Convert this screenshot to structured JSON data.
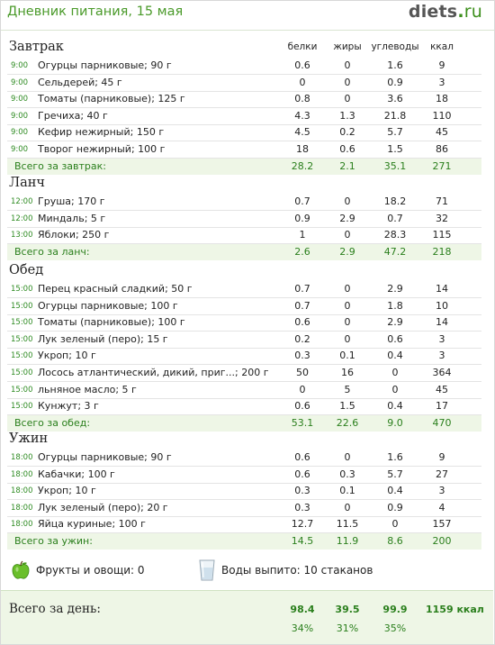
{
  "header": {
    "title": "Дневник питания, 15 мая",
    "logo_main": "diets",
    "logo_dot": ".",
    "logo_tld": "ru"
  },
  "columns": [
    "белки",
    "жиры",
    "углеводы",
    "ккал"
  ],
  "meals": [
    {
      "title": "Завтрак",
      "items": [
        {
          "time": "9:00",
          "name": "Огурцы парниковые; 90 г",
          "p": "0.6",
          "f": "0",
          "c": "1.6",
          "k": "9"
        },
        {
          "time": "9:00",
          "name": "Сельдерей; 45 г",
          "p": "0",
          "f": "0",
          "c": "0.9",
          "k": "3"
        },
        {
          "time": "9:00",
          "name": "Томаты (парниковые); 125 г",
          "p": "0.8",
          "f": "0",
          "c": "3.6",
          "k": "18"
        },
        {
          "time": "9:00",
          "name": "Гречиха; 40 г",
          "p": "4.3",
          "f": "1.3",
          "c": "21.8",
          "k": "110"
        },
        {
          "time": "9:00",
          "name": "Кефир нежирный; 150 г",
          "p": "4.5",
          "f": "0.2",
          "c": "5.7",
          "k": "45"
        },
        {
          "time": "9:00",
          "name": "Творог нежирный; 100 г",
          "p": "18",
          "f": "0.6",
          "c": "1.5",
          "k": "86"
        }
      ],
      "total": {
        "label": "Всего за завтрак:",
        "p": "28.2",
        "f": "2.1",
        "c": "35.1",
        "k": "271"
      }
    },
    {
      "title": "Ланч",
      "items": [
        {
          "time": "12:00",
          "name": "Груша; 170 г",
          "p": "0.7",
          "f": "0",
          "c": "18.2",
          "k": "71"
        },
        {
          "time": "12:00",
          "name": "Миндаль; 5 г",
          "p": "0.9",
          "f": "2.9",
          "c": "0.7",
          "k": "32"
        },
        {
          "time": "13:00",
          "name": "Яблоки; 250 г",
          "p": "1",
          "f": "0",
          "c": "28.3",
          "k": "115"
        }
      ],
      "total": {
        "label": "Всего за ланч:",
        "p": "2.6",
        "f": "2.9",
        "c": "47.2",
        "k": "218"
      }
    },
    {
      "title": "Обед",
      "items": [
        {
          "time": "15:00",
          "name": "Перец красный сладкий; 50 г",
          "p": "0.7",
          "f": "0",
          "c": "2.9",
          "k": "14"
        },
        {
          "time": "15:00",
          "name": "Огурцы парниковые; 100 г",
          "p": "0.7",
          "f": "0",
          "c": "1.8",
          "k": "10"
        },
        {
          "time": "15:00",
          "name": "Томаты (парниковые); 100 г",
          "p": "0.6",
          "f": "0",
          "c": "2.9",
          "k": "14"
        },
        {
          "time": "15:00",
          "name": "Лук зеленый (перо); 15 г",
          "p": "0.2",
          "f": "0",
          "c": "0.6",
          "k": "3"
        },
        {
          "time": "15:00",
          "name": "Укроп; 10 г",
          "p": "0.3",
          "f": "0.1",
          "c": "0.4",
          "k": "3"
        },
        {
          "time": "15:00",
          "name": "Лосось атлантический, дикий, приг...; 200 г",
          "p": "50",
          "f": "16",
          "c": "0",
          "k": "364"
        },
        {
          "time": "15:00",
          "name": "льняное масло; 5 г",
          "p": "0",
          "f": "5",
          "c": "0",
          "k": "45"
        },
        {
          "time": "15:00",
          "name": "Кунжут; 3 г",
          "p": "0.6",
          "f": "1.5",
          "c": "0.4",
          "k": "17"
        }
      ],
      "total": {
        "label": "Всего за обед:",
        "p": "53.1",
        "f": "22.6",
        "c": "9.0",
        "k": "470"
      }
    },
    {
      "title": "Ужин",
      "items": [
        {
          "time": "18:00",
          "name": "Огурцы парниковые; 90 г",
          "p": "0.6",
          "f": "0",
          "c": "1.6",
          "k": "9"
        },
        {
          "time": "18:00",
          "name": "Кабачки; 100 г",
          "p": "0.6",
          "f": "0.3",
          "c": "5.7",
          "k": "27"
        },
        {
          "time": "18:00",
          "name": "Укроп; 10 г",
          "p": "0.3",
          "f": "0.1",
          "c": "0.4",
          "k": "3"
        },
        {
          "time": "18:00",
          "name": "Лук зеленый (перо); 20 г",
          "p": "0.3",
          "f": "0",
          "c": "0.9",
          "k": "4"
        },
        {
          "time": "18:00",
          "name": "Яйца куриные; 100 г",
          "p": "12.7",
          "f": "11.5",
          "c": "0",
          "k": "157"
        }
      ],
      "total": {
        "label": "Всего за ужин:",
        "p": "14.5",
        "f": "11.9",
        "c": "8.6",
        "k": "200"
      }
    }
  ],
  "extras": {
    "fruits": "Фрукты и овощи: 0",
    "water": "Воды выпито: 10 стаканов"
  },
  "day": {
    "label": "Всего за день:",
    "p": "98.4",
    "f": "39.5",
    "c": "99.9",
    "k": "1159 ккал",
    "p_pct": "34%",
    "f_pct": "31%",
    "c_pct": "35%"
  },
  "colors": {
    "accent_green": "#2a7f1c",
    "total_bg": "#eef6e6",
    "header_green": "#4a9a2a"
  },
  "icons": {
    "fruits": "apple-icon",
    "water": "water-glass-icon"
  }
}
